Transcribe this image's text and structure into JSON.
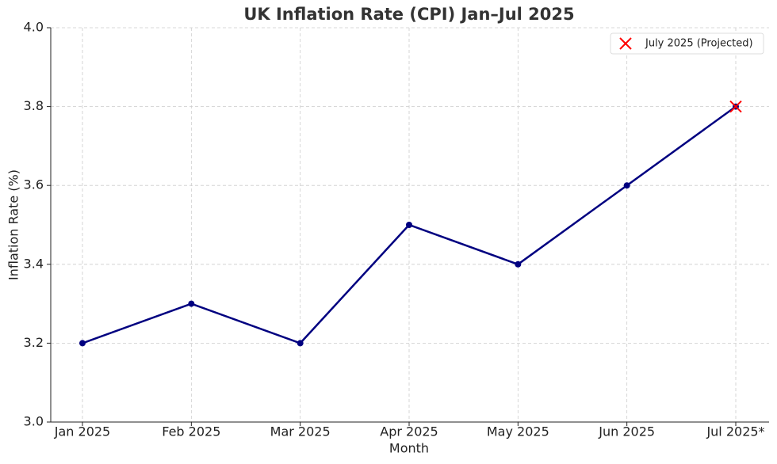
{
  "chart_data": {
    "type": "line",
    "title": "UK Inflation Rate (CPI) Jan–Jul 2025",
    "x_label": "Month",
    "y_label": "Inflation Rate (%)",
    "categories": [
      "Jan 2025",
      "Feb 2025",
      "Mar 2025",
      "Apr 2025",
      "May 2025",
      "Jun 2025",
      "Jul 2025*"
    ],
    "series": [
      {
        "color": "#000080",
        "marker": "o",
        "show_line": true,
        "values": [
          3.2,
          3.3,
          3.2,
          3.5,
          3.4,
          3.6,
          3.8
        ]
      },
      {
        "name": "July 2025 (Projected)",
        "color": "#ff0000",
        "marker": "x",
        "show_line": false,
        "values": [
          null,
          null,
          null,
          null,
          null,
          null,
          3.8
        ]
      }
    ],
    "ylim": [
      3.0,
      4.0
    ],
    "yticks": [
      {
        "value": 3.0,
        "label": "3.0"
      },
      3.2,
      3.4,
      3.6,
      3.8,
      {
        "value": 4.0,
        "label": "4.0"
      }
    ],
    "grid": true,
    "legend": "upper right"
  }
}
